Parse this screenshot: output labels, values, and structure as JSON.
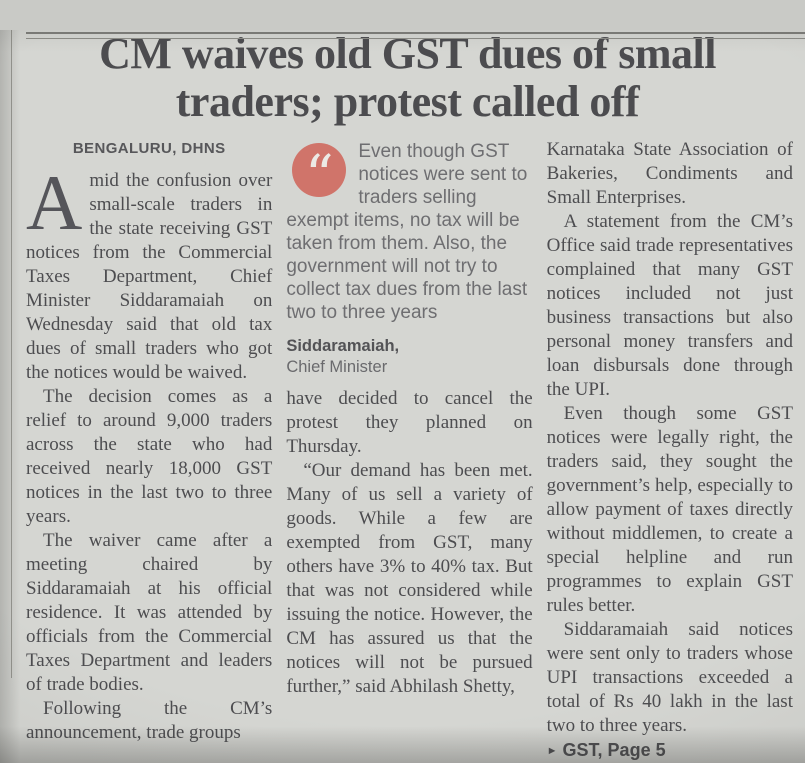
{
  "page": {
    "headline": "CM waives old GST dues of small traders; protest called off",
    "byline": "BENGALURU, DHNS",
    "quote": {
      "icon": "quote-marks-icon",
      "icon_glyph": "“",
      "icon_color": "#d0746a",
      "text": "Even though GST notices were sent to traders selling exempt items, no tax will be taken from them. Also, the government will not try to collect tax dues from the last two to three years",
      "attribution_name": "Siddaramaiah,",
      "attribution_title": "Chief Minister"
    },
    "columns": {
      "col1": {
        "dropcap": "A",
        "lead": "mid the confusion over small-scale traders in the state receiving GST notices from the Commercial Taxes Department, Chief Minister Siddaramaiah on Wednesday said that old tax dues of small traders who got the notices would be waived.",
        "paragraphs": [
          "The decision comes as a relief to around 9,000 traders across the state who had received nearly 18,000 GST notices in the last two to three years.",
          "The waiver came after a meeting chaired by Siddaramaiah at his official residence. It was attended by officials from the Commercial Taxes Department and leaders of trade bodies.",
          "Following the CM’s announcement, trade groups"
        ]
      },
      "col2": {
        "paragraphs": [
          "have decided to cancel the protest they planned on Thursday.",
          "“Our demand has been met. Many of us sell a variety of goods. While a few are exempted from GST, many others have 3% to 40% tax. But that was not considered while issuing the notice. However, the CM has assured us that the notices will not be pursued further,” said Abhilash Shetty,"
        ]
      },
      "col3": {
        "paragraphs": [
          "Karnataka State Association of Bakeries, Condiments and Small Enterprises.",
          "A statement from the CM’s Office said trade representatives complained that many GST notices included not just business transactions but also personal money transfers and loan disbursals done through the UPI.",
          "Even though some GST notices were legally right, the traders said, they sought the government’s help, especially to allow payment of taxes directly without middlemen, to create a special helpline and run programmes to explain GST rules better.",
          "Siddaramaiah said notices were sent only to traders whose UPI transactions exceeded a total of Rs 40 lakh in the last two to three years."
        ],
        "pointer_arrow": "►",
        "pointer_label": "GST, Page 5"
      }
    }
  }
}
